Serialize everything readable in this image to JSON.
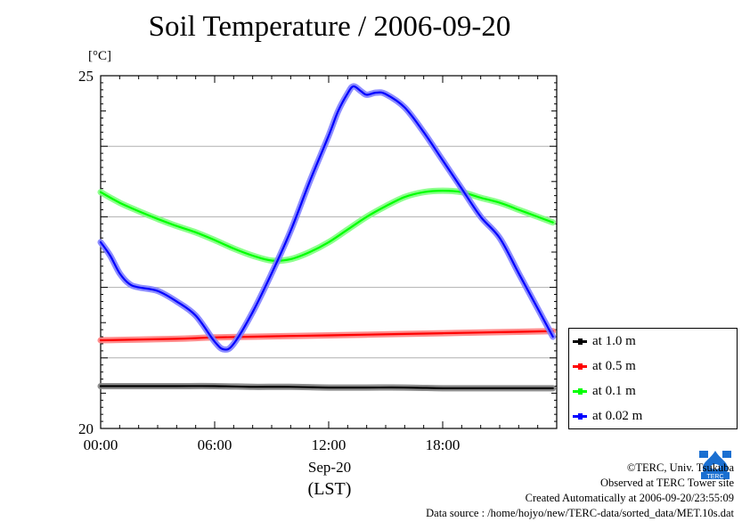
{
  "chart_data": {
    "type": "line",
    "title": "Soil Temperature / 2006-09-20",
    "ylabel": "[°C]",
    "xlabel": "Sep-20",
    "xlabel_sub": "(LST)",
    "ylim": [
      20,
      25
    ],
    "xlim": [
      0,
      24
    ],
    "y_tick_labels": [
      "20",
      "25"
    ],
    "y_ticks": [
      20,
      25
    ],
    "x_ticks": [
      0,
      6,
      12,
      18
    ],
    "x_tick_labels": [
      "00:00",
      "06:00",
      "12:00",
      "18:00"
    ],
    "grid": true,
    "legend_position": "right",
    "series": [
      {
        "name": "at 1.0 m",
        "color": "#000000",
        "x": [
          0,
          2,
          4,
          6,
          8,
          10,
          12,
          14,
          16,
          18,
          20,
          22,
          23.8
        ],
        "values": [
          20.6,
          20.6,
          20.6,
          20.6,
          20.59,
          20.59,
          20.58,
          20.58,
          20.58,
          20.57,
          20.57,
          20.57,
          20.57
        ]
      },
      {
        "name": "at 0.5 m",
        "color": "#ff0000",
        "x": [
          0,
          2,
          4,
          6,
          8,
          10,
          12,
          14,
          16,
          18,
          20,
          22,
          23.8
        ],
        "values": [
          21.25,
          21.26,
          21.27,
          21.29,
          21.3,
          21.31,
          21.32,
          21.33,
          21.34,
          21.35,
          21.36,
          21.37,
          21.38
        ]
      },
      {
        "name": "at 0.1 m",
        "color": "#00ff00",
        "x": [
          0,
          1,
          2,
          3,
          4,
          5,
          6,
          7,
          8,
          9,
          10,
          11,
          12,
          13,
          14,
          15,
          16,
          17,
          18,
          19,
          20,
          21,
          22,
          23,
          23.8
        ],
        "values": [
          23.35,
          23.2,
          23.08,
          22.97,
          22.87,
          22.78,
          22.67,
          22.55,
          22.45,
          22.38,
          22.4,
          22.5,
          22.64,
          22.82,
          23.0,
          23.15,
          23.28,
          23.35,
          23.37,
          23.35,
          23.27,
          23.2,
          23.1,
          23.0,
          22.92
        ]
      },
      {
        "name": "at 0.02 m",
        "color": "#0000ff",
        "x": [
          0,
          0.5,
          1,
          1.5,
          2,
          3,
          4,
          5,
          6,
          6.5,
          7,
          8,
          9,
          10,
          11,
          12,
          12.5,
          13,
          13.3,
          13.7,
          14,
          14.5,
          15,
          16,
          17,
          18,
          19,
          20,
          21,
          22,
          23,
          23.8
        ],
        "values": [
          22.64,
          22.45,
          22.2,
          22.05,
          22.0,
          21.95,
          21.8,
          21.6,
          21.23,
          21.12,
          21.2,
          21.65,
          22.2,
          22.8,
          23.5,
          24.15,
          24.5,
          24.75,
          24.85,
          24.78,
          24.73,
          24.76,
          24.74,
          24.55,
          24.2,
          23.8,
          23.4,
          23.0,
          22.7,
          22.2,
          21.7,
          21.3
        ]
      }
    ]
  },
  "credits": {
    "copyright": "©TERC, Univ. Tsukuba",
    "observed": "Observed at TERC Tower site",
    "created": "Created Automatically at 2006-09-20/23:55:09",
    "source": "Data source : /home/hojyo/new/TERC-data/sorted_data/MET.10s.dat",
    "logo_text": "TERC"
  }
}
